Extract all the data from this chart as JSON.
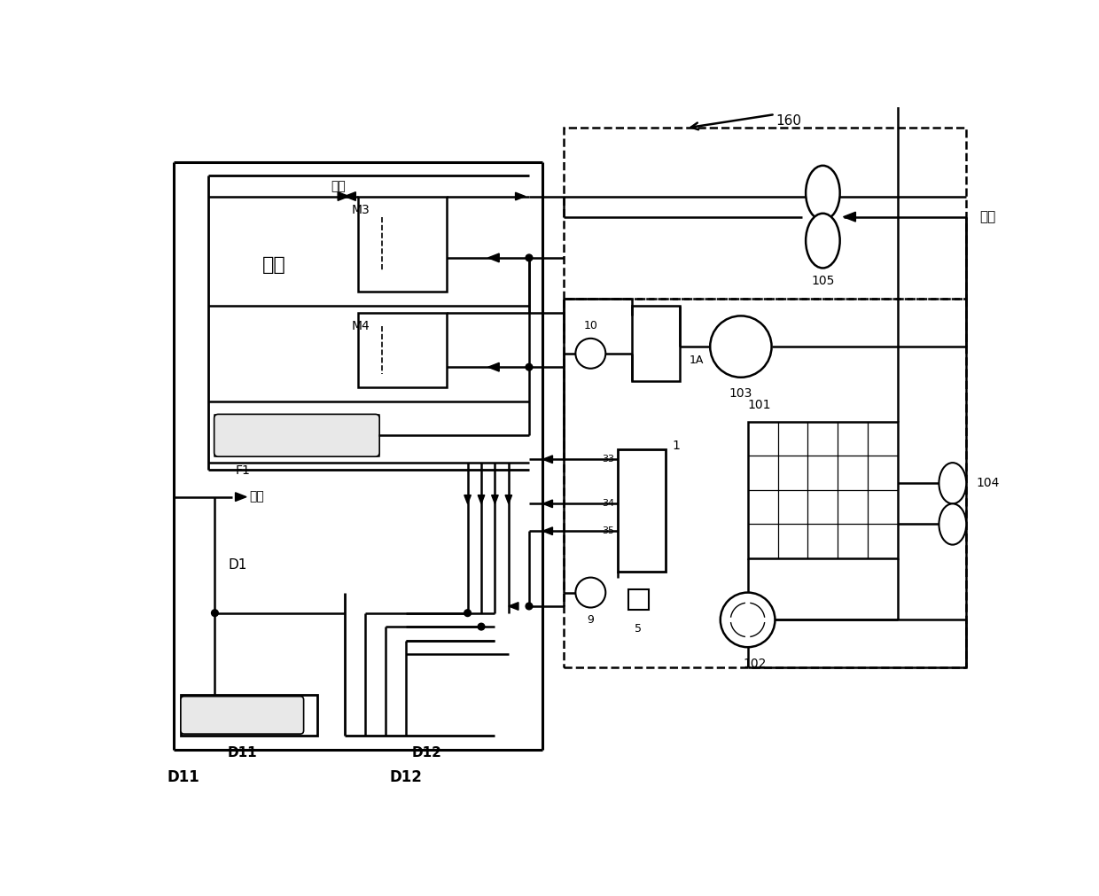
{
  "bg": "#ffffff",
  "fw": 12.4,
  "fh": 10.11,
  "txt": {
    "room": "房间",
    "M3": "M3",
    "M4": "M4",
    "F1": "F1",
    "D1": "D1",
    "D11": "D11",
    "D12": "D12",
    "sw1": "送风",
    "sw2": "送风",
    "xf": "新风",
    "n160": "160",
    "n105": "105",
    "n103": "103",
    "n101": "101",
    "n102": "102",
    "n104": "104",
    "n1A": "1A",
    "n1": "1",
    "n10": "10",
    "n9": "9",
    "n5": "5",
    "n33": "33",
    "n34": "34",
    "n35": "35"
  }
}
